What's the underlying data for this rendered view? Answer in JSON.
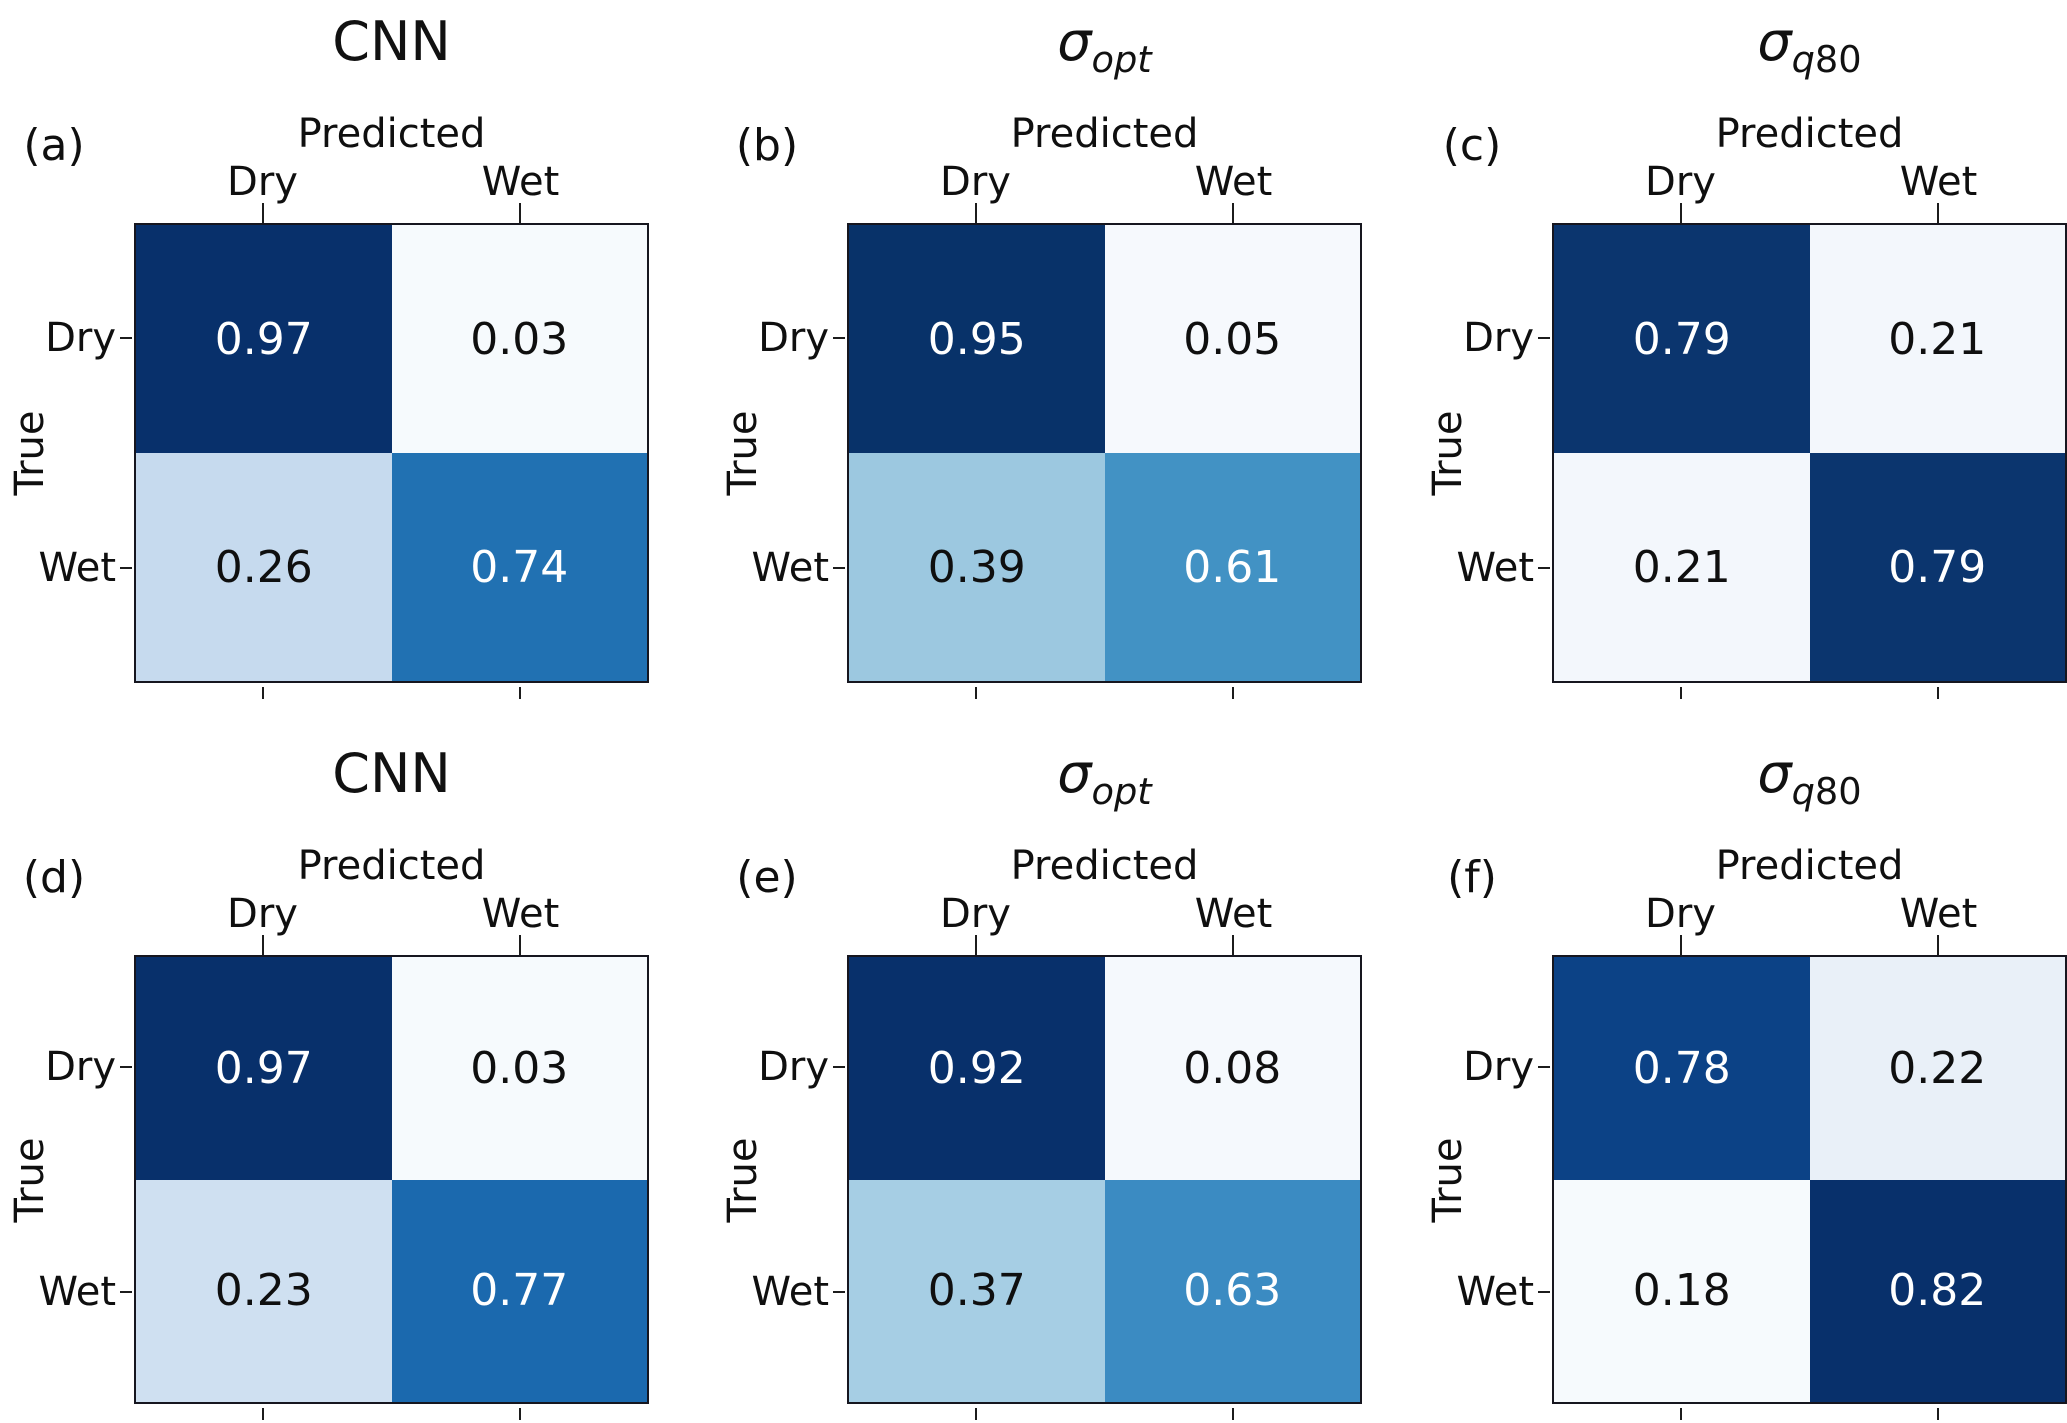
{
  "shared": {
    "predicted_label": "Predicted",
    "true_label": "True",
    "col_labels": [
      "Dry",
      "Wet"
    ],
    "row_labels": [
      "Dry",
      "Wet"
    ]
  },
  "colors": {
    "colormap": "Blues",
    "max_cell": "#08306b",
    "min_cell": "#f6fafd",
    "spine": "#16161f",
    "background": "#ffffff"
  },
  "panels": [
    {
      "letter": "(a)",
      "title_plain": "CNN",
      "title_sigma": "",
      "title_sub_italic": "",
      "title_sub_plain": "",
      "cells": [
        {
          "value": "0.97",
          "bg": "#08306b",
          "fg": "#ffffff"
        },
        {
          "value": "0.03",
          "bg": "#f6fafd",
          "fg": "#0f0f0f"
        },
        {
          "value": "0.26",
          "bg": "#c6daee",
          "fg": "#0f0f0f"
        },
        {
          "value": "0.74",
          "bg": "#2171b2",
          "fg": "#ffffff"
        }
      ]
    },
    {
      "letter": "(b)",
      "title_plain": "",
      "title_sigma": "σ",
      "title_sub_italic": "opt",
      "title_sub_plain": "",
      "cells": [
        {
          "value": "0.95",
          "bg": "#083269",
          "fg": "#ffffff"
        },
        {
          "value": "0.05",
          "bg": "#f6f9fd",
          "fg": "#0f0f0f"
        },
        {
          "value": "0.39",
          "bg": "#9cc8e0",
          "fg": "#0f0f0f"
        },
        {
          "value": "0.61",
          "bg": "#4292c4",
          "fg": "#ffffff"
        }
      ]
    },
    {
      "letter": "(c)",
      "title_plain": "",
      "title_sigma": "σ",
      "title_sub_italic": "q",
      "title_sub_plain": "80",
      "cells": [
        {
          "value": "0.79",
          "bg": "#0b356e",
          "fg": "#ffffff"
        },
        {
          "value": "0.21",
          "bg": "#f3f7fc",
          "fg": "#0f0f0f"
        },
        {
          "value": "0.21",
          "bg": "#f3f7fc",
          "fg": "#0f0f0f"
        },
        {
          "value": "0.79",
          "bg": "#0b356e",
          "fg": "#ffffff"
        }
      ]
    },
    {
      "letter": "(d)",
      "title_plain": "CNN",
      "title_sigma": "",
      "title_sub_italic": "",
      "title_sub_plain": "",
      "cells": [
        {
          "value": "0.97",
          "bg": "#08306b",
          "fg": "#ffffff"
        },
        {
          "value": "0.03",
          "bg": "#f6fafd",
          "fg": "#0f0f0f"
        },
        {
          "value": "0.23",
          "bg": "#cfe0f1",
          "fg": "#0f0f0f"
        },
        {
          "value": "0.77",
          "bg": "#1b69ae",
          "fg": "#ffffff"
        }
      ]
    },
    {
      "letter": "(e)",
      "title_plain": "",
      "title_sigma": "σ",
      "title_sub_italic": "opt",
      "title_sub_plain": "",
      "cells": [
        {
          "value": "0.92",
          "bg": "#08306b",
          "fg": "#ffffff"
        },
        {
          "value": "0.08",
          "bg": "#f5f9fd",
          "fg": "#0f0f0f"
        },
        {
          "value": "0.37",
          "bg": "#a6cee4",
          "fg": "#0f0f0f"
        },
        {
          "value": "0.63",
          "bg": "#3b8bc2",
          "fg": "#ffffff"
        }
      ]
    },
    {
      "letter": "(f)",
      "title_plain": "",
      "title_sigma": "σ",
      "title_sub_italic": "q",
      "title_sub_plain": "80",
      "cells": [
        {
          "value": "0.78",
          "bg": "#0c4286",
          "fg": "#ffffff"
        },
        {
          "value": "0.22",
          "bg": "#e9f0f8",
          "fg": "#0f0f0f"
        },
        {
          "value": "0.18",
          "bg": "#f6fafd",
          "fg": "#0f0f0f"
        },
        {
          "value": "0.82",
          "bg": "#08306b",
          "fg": "#ffffff"
        }
      ]
    }
  ],
  "chart_data": [
    {
      "type": "heatmap",
      "panel": "(a)",
      "title": "CNN",
      "x_label": "Predicted",
      "y_label": "True",
      "x_categories": [
        "Dry",
        "Wet"
      ],
      "y_categories": [
        "Dry",
        "Wet"
      ],
      "values": [
        [
          0.97,
          0.03
        ],
        [
          0.26,
          0.74
        ]
      ],
      "colormap": "Blues",
      "grid": false
    },
    {
      "type": "heatmap",
      "panel": "(b)",
      "title": "σ_opt",
      "x_label": "Predicted",
      "y_label": "True",
      "x_categories": [
        "Dry",
        "Wet"
      ],
      "y_categories": [
        "Dry",
        "Wet"
      ],
      "values": [
        [
          0.95,
          0.05
        ],
        [
          0.39,
          0.61
        ]
      ],
      "colormap": "Blues",
      "grid": false
    },
    {
      "type": "heatmap",
      "panel": "(c)",
      "title": "σ_q80",
      "x_label": "Predicted",
      "y_label": "True",
      "x_categories": [
        "Dry",
        "Wet"
      ],
      "y_categories": [
        "Dry",
        "Wet"
      ],
      "values": [
        [
          0.79,
          0.21
        ],
        [
          0.21,
          0.79
        ]
      ],
      "colormap": "Blues",
      "grid": false
    },
    {
      "type": "heatmap",
      "panel": "(d)",
      "title": "CNN",
      "x_label": "Predicted",
      "y_label": "True",
      "x_categories": [
        "Dry",
        "Wet"
      ],
      "y_categories": [
        "Dry",
        "Wet"
      ],
      "values": [
        [
          0.97,
          0.03
        ],
        [
          0.23,
          0.77
        ]
      ],
      "colormap": "Blues",
      "grid": false
    },
    {
      "type": "heatmap",
      "panel": "(e)",
      "title": "σ_opt",
      "x_label": "Predicted",
      "y_label": "True",
      "x_categories": [
        "Dry",
        "Wet"
      ],
      "y_categories": [
        "Dry",
        "Wet"
      ],
      "values": [
        [
          0.92,
          0.08
        ],
        [
          0.37,
          0.63
        ]
      ],
      "colormap": "Blues",
      "grid": false
    },
    {
      "type": "heatmap",
      "panel": "(f)",
      "title": "σ_q80",
      "x_label": "Predicted",
      "y_label": "True",
      "x_categories": [
        "Dry",
        "Wet"
      ],
      "y_categories": [
        "Dry",
        "Wet"
      ],
      "values": [
        [
          0.78,
          0.22
        ],
        [
          0.18,
          0.82
        ]
      ],
      "colormap": "Blues",
      "grid": false
    }
  ]
}
